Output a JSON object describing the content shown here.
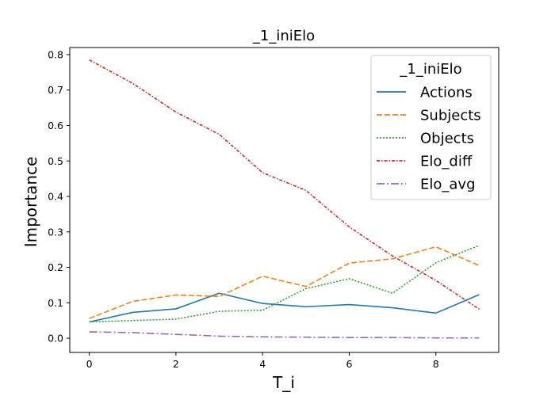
{
  "chart_data": {
    "type": "line",
    "title": "_1_iniElo",
    "xlabel": "T_i",
    "ylabel": "Importance",
    "x": [
      0,
      1,
      2,
      3,
      4,
      5,
      6,
      7,
      8,
      9
    ],
    "xlim": [
      -0.45,
      9.45
    ],
    "ylim": [
      -0.04,
      0.82
    ],
    "xticks": [
      0,
      2,
      4,
      6,
      8
    ],
    "yticks": [
      0.0,
      0.1,
      0.2,
      0.3,
      0.4,
      0.5,
      0.6,
      0.7,
      0.8
    ],
    "ytick_labels": [
      "0.0",
      "0.1",
      "0.2",
      "0.3",
      "0.4",
      "0.5",
      "0.6",
      "0.7",
      "0.8"
    ],
    "grid": false,
    "legend": {
      "title": "_1_iniElo",
      "placement": "upper right"
    },
    "series": [
      {
        "name": "Actions",
        "color": "#1f77b4",
        "style": "solid",
        "values": [
          0.046,
          0.073,
          0.083,
          0.127,
          0.098,
          0.089,
          0.095,
          0.086,
          0.071,
          0.123
        ]
      },
      {
        "name": "Subjects",
        "color": "#ff7f0e",
        "style": "dashed",
        "values": [
          0.056,
          0.104,
          0.122,
          0.118,
          0.175,
          0.146,
          0.212,
          0.224,
          0.258,
          0.205
        ]
      },
      {
        "name": "Objects",
        "color": "#2ca02c",
        "style": "dotted",
        "values": [
          0.046,
          0.05,
          0.054,
          0.076,
          0.079,
          0.14,
          0.168,
          0.127,
          0.213,
          0.262
        ]
      },
      {
        "name": "Elo_diff",
        "color": "#d62728",
        "style": "densedashdot",
        "values": [
          0.785,
          0.719,
          0.638,
          0.575,
          0.467,
          0.417,
          0.314,
          0.232,
          0.163,
          0.082
        ]
      },
      {
        "name": "Elo_avg",
        "color": "#9467bd",
        "style": "dashdot",
        "values": [
          0.018,
          0.016,
          0.011,
          0.006,
          0.004,
          0.003,
          0.002,
          0.002,
          0.001,
          0.001
        ]
      }
    ]
  }
}
